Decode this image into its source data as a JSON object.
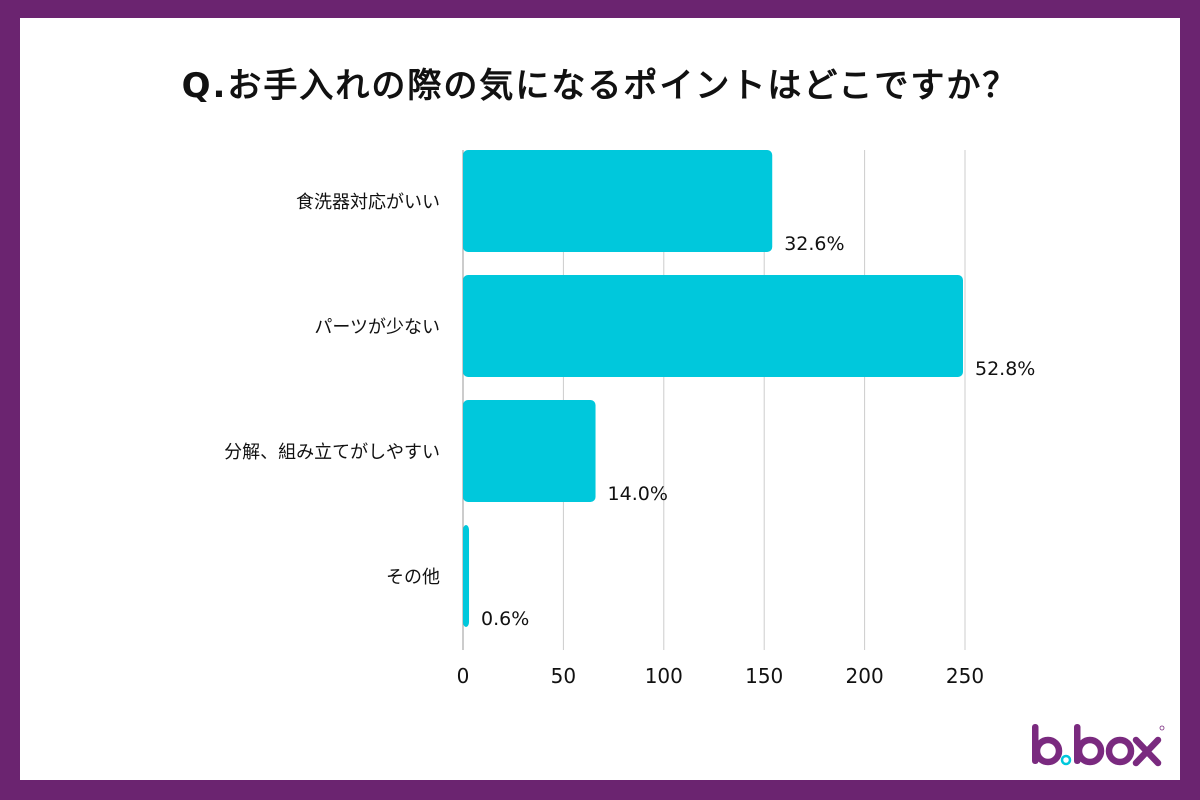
{
  "title": "Q.お手入れの際の気になるポイントはどこですか？",
  "logo": {
    "text": "b.box"
  },
  "colors": {
    "frame": "#6b2470",
    "bar": "#00c8dc",
    "grid": "#cccccc",
    "logo": "#7a2a7f",
    "logo_dot": "#00c8dc"
  },
  "chart_data": {
    "type": "bar",
    "orientation": "horizontal",
    "title": "Q.お手入れの際の気になるポイントはどこですか？",
    "categories": [
      "食洗器対応がいい",
      "パーツが少ない",
      "分解、組み立てがしやすい",
      "その他"
    ],
    "values": [
      154,
      249,
      66,
      3
    ],
    "data_labels": [
      "32.6%",
      "52.8%",
      "14.0%",
      "0.6%"
    ],
    "xlim": [
      0,
      250
    ],
    "xticks": [
      0,
      50,
      100,
      150,
      200,
      250
    ],
    "grid": true,
    "legend": "none"
  }
}
